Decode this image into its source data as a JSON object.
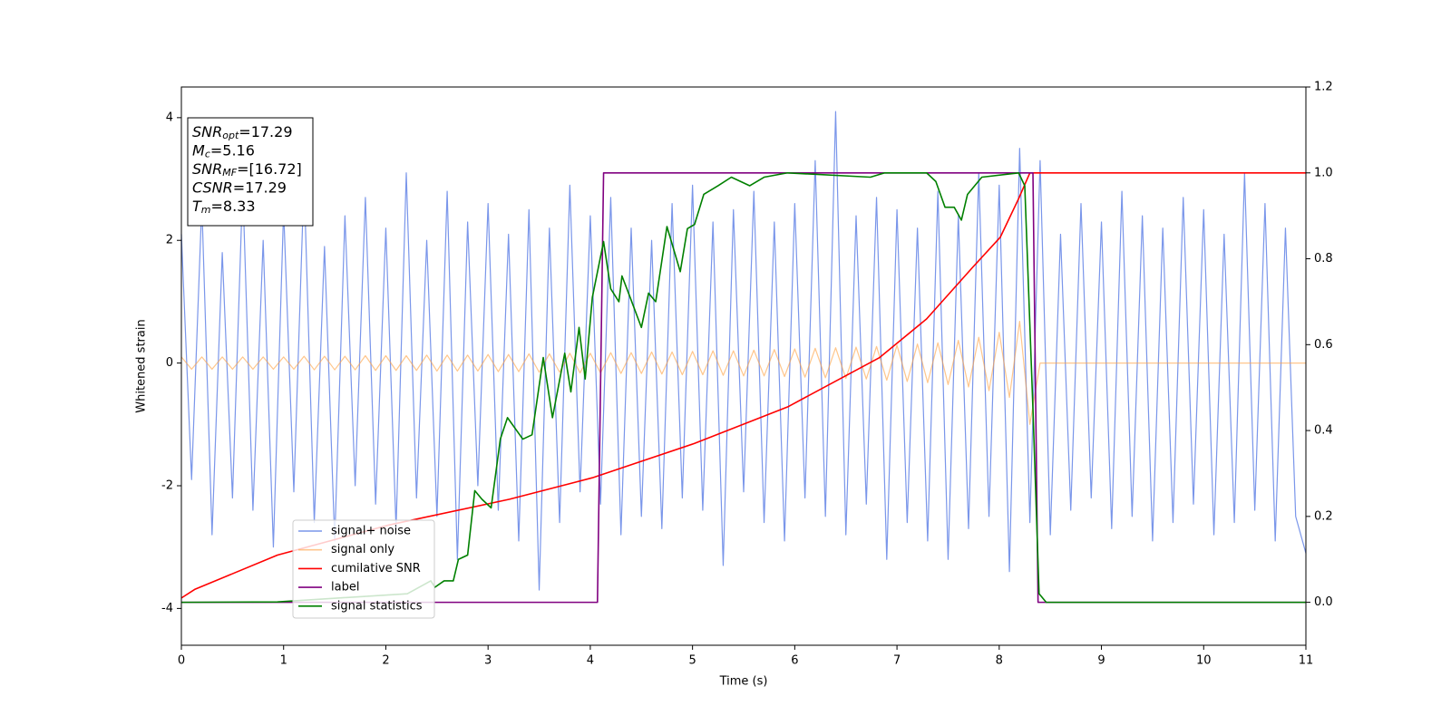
{
  "chart_data": {
    "type": "line",
    "xlabel": "Time (s)",
    "ylabel": "Whitened strain",
    "xlim": [
      0,
      11
    ],
    "xticks": [
      0,
      1,
      2,
      3,
      4,
      5,
      6,
      7,
      8,
      9,
      10,
      11
    ],
    "ylim": [
      -4.6,
      4.5
    ],
    "yticks": [
      -4,
      -2,
      0,
      2,
      4
    ],
    "y2lim": [
      -0.1,
      1.2
    ],
    "y2ticks": [
      {
        "value": 0,
        "label": "0.0"
      },
      0.2,
      0.4,
      0.6,
      0.8,
      {
        "value": 1,
        "label": "1.0"
      },
      1.2
    ],
    "legend": "lower left",
    "annotation": [
      {
        "main": "SNR",
        "sub": "opt",
        "rest": "=17.29"
      },
      {
        "main": "M",
        "sub": "c",
        "rest": "=5.16"
      },
      {
        "main": "SNR",
        "sub": "MF",
        "rest": "=[16.72]"
      },
      {
        "main": "CSNR",
        "sub": "",
        "rest": "=17.29"
      },
      {
        "main": "T",
        "sub": "m",
        "rest": "=8.33"
      }
    ],
    "x": [
      0,
      0.1,
      0.2,
      0.3,
      0.4,
      0.5,
      0.6,
      0.7,
      0.8,
      0.9,
      1,
      1.1,
      1.2,
      1.3,
      1.4,
      1.5,
      1.6,
      1.7,
      1.8,
      1.9,
      2,
      2.1,
      2.2,
      2.3,
      2.4,
      2.5,
      2.6,
      2.7,
      2.8,
      2.9,
      3,
      3.1,
      3.2,
      3.3,
      3.4,
      3.5,
      3.6,
      3.7,
      3.8,
      3.9,
      4,
      4.1,
      4.2,
      4.3,
      4.4,
      4.5,
      4.6,
      4.7,
      4.8,
      4.9,
      5,
      5.1,
      5.2,
      5.3,
      5.4,
      5.5,
      5.6,
      5.7,
      5.8,
      5.9,
      6,
      6.1,
      6.2,
      6.3,
      6.4,
      6.5,
      6.6,
      6.7,
      6.8,
      6.9,
      7,
      7.1,
      7.2,
      7.3,
      7.4,
      7.5,
      7.6,
      7.7,
      7.8,
      7.9,
      8,
      8.1,
      8.2,
      8.3,
      8.4,
      8.5,
      8.6,
      8.7,
      8.8,
      8.9,
      9,
      9.1,
      9.2,
      9.3,
      9.4,
      9.5,
      9.6,
      9.7,
      9.8,
      9.9,
      10,
      10.1,
      10.2,
      10.3,
      10.4,
      10.5,
      10.6,
      10.7,
      10.8,
      10.9,
      11
    ],
    "series": [
      {
        "name": "signal+ noise",
        "color": "#4169e1",
        "alpha": 0.7,
        "values": [
          2.1,
          -1.9,
          2.6,
          -2.8,
          1.8,
          -2.2,
          2.9,
          -2.4,
          2.0,
          -3.0,
          2.5,
          -2.1,
          3.0,
          -2.6,
          1.9,
          -2.9,
          2.4,
          -2.0,
          2.7,
          -2.3,
          2.2,
          -2.7,
          3.1,
          -2.2,
          2.0,
          -2.5,
          2.8,
          -3.2,
          2.3,
          -2.0,
          2.6,
          -2.4,
          2.1,
          -2.9,
          2.5,
          -3.7,
          2.2,
          -2.6,
          2.9,
          -2.1,
          2.4,
          -2.3,
          2.7,
          -2.8,
          2.2,
          -2.5,
          2.0,
          -2.7,
          2.6,
          -2.2,
          2.9,
          -2.4,
          2.3,
          -3.3,
          2.5,
          -2.1,
          2.8,
          -2.6,
          2.3,
          -2.9,
          2.6,
          -2.2,
          3.3,
          -2.5,
          4.1,
          -2.8,
          2.4,
          -2.3,
          2.7,
          -3.2,
          2.5,
          -2.6,
          2.2,
          -2.9,
          2.8,
          -3.2,
          2.4,
          -2.7,
          3.1,
          -2.5,
          2.9,
          -3.4,
          3.5,
          -2.6,
          3.3,
          -2.8,
          2.1,
          -2.4,
          2.6,
          -2.2,
          2.3,
          -2.7,
          2.8,
          -2.5,
          2.4,
          -2.9,
          2.2,
          -2.6,
          2.7,
          -2.3,
          2.5,
          -2.8,
          2.1,
          -2.6,
          3.1,
          -2.4,
          2.6,
          -2.9,
          2.2,
          -2.5,
          -3.1
        ]
      },
      {
        "name": "signal only",
        "color": "#ffa040",
        "alpha": 0.6,
        "values": [
          0.1,
          -0.1,
          0.1,
          -0.1,
          0.1,
          -0.1,
          0.1,
          -0.1,
          0.1,
          -0.1,
          0.1,
          -0.1,
          0.11,
          -0.11,
          0.11,
          -0.11,
          0.11,
          -0.11,
          0.12,
          -0.12,
          0.12,
          -0.12,
          0.12,
          -0.12,
          0.13,
          -0.13,
          0.13,
          -0.13,
          0.13,
          -0.13,
          0.14,
          -0.14,
          0.14,
          -0.14,
          0.15,
          -0.15,
          0.15,
          -0.15,
          0.16,
          -0.16,
          0.16,
          -0.16,
          0.17,
          -0.17,
          0.17,
          -0.17,
          0.18,
          -0.18,
          0.18,
          -0.19,
          0.19,
          -0.19,
          0.2,
          -0.2,
          0.2,
          -0.21,
          0.21,
          -0.21,
          0.22,
          -0.22,
          0.23,
          -0.23,
          0.24,
          -0.24,
          0.25,
          -0.25,
          0.26,
          -0.26,
          0.27,
          -0.28,
          0.29,
          -0.3,
          0.31,
          -0.32,
          0.33,
          -0.35,
          0.37,
          -0.39,
          0.42,
          -0.45,
          0.5,
          -0.56,
          0.68,
          -1.0,
          0,
          0,
          0,
          0,
          0,
          0,
          0,
          0,
          0,
          0,
          0,
          0,
          0,
          0,
          0,
          0,
          0,
          0,
          0,
          0,
          0,
          0,
          0,
          0,
          0,
          0,
          0
        ]
      },
      {
        "name": "cumilative SNR",
        "color": "#ff0000",
        "alpha": 1,
        "axis": "y2",
        "x": [
          0,
          0.13,
          0.94,
          2.03,
          3.21,
          4.02,
          5.02,
          5.93,
          6.83,
          7.29,
          7.74,
          8.01,
          8.19,
          8.3,
          11
        ],
        "values": [
          0.01,
          0.03,
          0.11,
          0.18,
          0.24,
          0.29,
          0.37,
          0.455,
          0.57,
          0.66,
          0.78,
          0.85,
          0.94,
          1.0,
          1.0
        ]
      },
      {
        "name": "label",
        "color": "#800080",
        "alpha": 1,
        "axis": "y2",
        "x": [
          0,
          4.07,
          4.13,
          8.33,
          8.38,
          11
        ],
        "values": [
          0,
          0,
          1,
          1,
          0,
          0
        ]
      },
      {
        "name": "signal statistics",
        "color": "#008000",
        "alpha": 1,
        "axis": "y2",
        "x": [
          0,
          0.94,
          2.21,
          2.44,
          2.48,
          2.57,
          2.66,
          2.71,
          2.8,
          2.87,
          2.94,
          3.03,
          3.12,
          3.19,
          3.34,
          3.43,
          3.54,
          3.63,
          3.75,
          3.81,
          3.89,
          3.95,
          4.02,
          4.13,
          4.2,
          4.28,
          4.31,
          4.39,
          4.5,
          4.57,
          4.64,
          4.75,
          4.88,
          4.95,
          5.02,
          5.11,
          5.25,
          5.38,
          5.56,
          5.7,
          5.93,
          6.74,
          6.88,
          7.29,
          7.38,
          7.47,
          7.56,
          7.63,
          7.69,
          7.83,
          8.19,
          8.25,
          8.33,
          8.39,
          8.46,
          11
        ],
        "values": [
          0,
          0.001,
          0.02,
          0.05,
          0.035,
          0.05,
          0.05,
          0.1,
          0.11,
          0.26,
          0.24,
          0.22,
          0.38,
          0.43,
          0.38,
          0.39,
          0.57,
          0.43,
          0.58,
          0.49,
          0.64,
          0.52,
          0.71,
          0.84,
          0.73,
          0.7,
          0.76,
          0.71,
          0.64,
          0.72,
          0.7,
          0.875,
          0.77,
          0.87,
          0.88,
          0.95,
          0.97,
          0.99,
          0.97,
          0.99,
          1.0,
          0.99,
          1.0,
          1.0,
          0.98,
          0.92,
          0.92,
          0.89,
          0.95,
          0.99,
          1.0,
          0.97,
          0.45,
          0.02,
          0,
          0
        ]
      }
    ]
  }
}
